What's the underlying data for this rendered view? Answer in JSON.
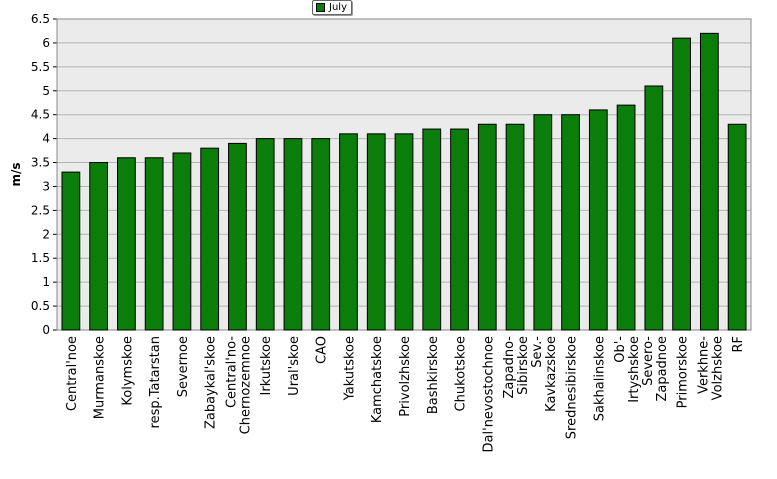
{
  "chart_data": {
    "type": "bar",
    "title": "",
    "xlabel": "",
    "ylabel": "m/s",
    "ylim": [
      0,
      6.5
    ],
    "ytick_step": 0.5,
    "yticks": [
      "0",
      "0.5",
      "1",
      "1.5",
      "2",
      "2.5",
      "3",
      "3.5",
      "4",
      "4.5",
      "5",
      "5.5",
      "6",
      "6.5"
    ],
    "grid": true,
    "legend_position": "top-center",
    "bar_color": "#0a7d0a",
    "plot_background": "#ebebeb",
    "categories": [
      "Central'noe",
      "Murmanskoe",
      "Kolymskoe",
      "resp.Tatarstan",
      "Severnoe",
      "Zabaykal'skoe",
      "Central'no-\nChernozemnoe",
      "Irkutskoe",
      "Ural'skoe",
      "CAO",
      "Yakutskoe",
      "Kamchatskoe",
      "Privolzhskoe",
      "Bashkirskoe",
      "Chukotskoe",
      "Dal'nevostochnoe",
      "Zapadno-\nSibirskoe",
      "Sev.-\nKavkazskoe",
      "Srednesibirskoe",
      "Sakhalinskoe",
      "Ob'-\nIrtyshskoe",
      "Severo-\nZapadnoe",
      "Primorskoe",
      "Verkhne-\nVolzhskoe",
      "RF"
    ],
    "series": [
      {
        "name": "July",
        "values": [
          3.3,
          3.5,
          3.6,
          3.6,
          3.7,
          3.8,
          3.9,
          4.0,
          4.0,
          4.0,
          4.1,
          4.1,
          4.1,
          4.2,
          4.2,
          4.3,
          4.3,
          4.5,
          4.5,
          4.6,
          4.7,
          5.1,
          6.1,
          6.2,
          4.3
        ]
      }
    ]
  }
}
